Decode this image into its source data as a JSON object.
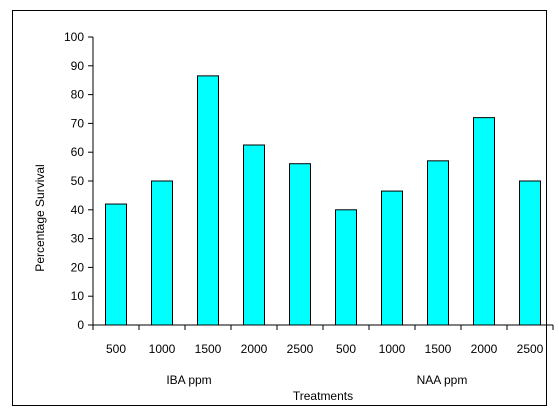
{
  "chart_data": {
    "type": "bar",
    "categories": [
      "500",
      "1000",
      "1500",
      "2000",
      "2500",
      "500",
      "1000",
      "1500",
      "2000",
      "2500"
    ],
    "values": [
      42,
      50,
      86.5,
      62.5,
      56,
      40,
      46.5,
      57,
      72,
      50
    ],
    "groups": [
      "IBA ppm",
      "NAA ppm"
    ],
    "xlabel": "Treatments",
    "ylabel": "Percentage Survival",
    "ylim": [
      0,
      100
    ],
    "yticks": [
      0,
      10,
      20,
      30,
      40,
      50,
      60,
      70,
      80,
      90,
      100
    ],
    "grid": false,
    "legend": "none",
    "bar_color": "#00ffff"
  }
}
